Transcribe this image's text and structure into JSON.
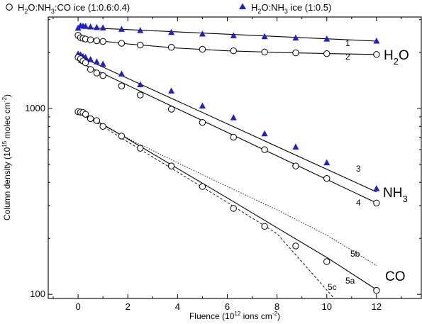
{
  "chart_data": {
    "type": "scatter",
    "y_scale": "log",
    "xlim": [
      -1.2,
      13.8
    ],
    "ylim": [
      95,
      3100
    ],
    "xlabel": {
      "main": "Fluence (10",
      "sup1": "12",
      "mid": " ions cm",
      "sup2": "-2",
      "end": ")"
    },
    "ylabel": {
      "main": "Column density (10",
      "sup1": "15",
      "mid": " molec cm",
      "sup2": "-2",
      "end": ")"
    },
    "x_ticks": [
      0,
      2,
      4,
      6,
      8,
      10,
      12
    ],
    "x_tick_labels": [
      "0",
      "2",
      "4",
      "6",
      "8",
      "10",
      "12"
    ],
    "y_tick_labels": [
      {
        "value": 100,
        "label": "100"
      },
      {
        "value": 1000,
        "label": "1000"
      }
    ],
    "legend": {
      "circles": {
        "pre": "H",
        "s1": "2",
        "mid1": "O:NH",
        "s2": "3",
        "post": ":CO ice (1:0.6:0.4)"
      },
      "triangles": {
        "pre": "H",
        "s1": "2",
        "mid1": "O:NH",
        "s2": "3",
        "post": " ice (1:0.5)"
      }
    },
    "species_labels": {
      "h2o": {
        "main": "H",
        "sub": "2",
        "post": "O"
      },
      "nh3": {
        "main": "NH",
        "sub": "3"
      },
      "co": {
        "main": "CO"
      }
    },
    "curve_labels": [
      "1",
      "2",
      "3",
      "4",
      "5a",
      "5b",
      "5c"
    ],
    "series": [
      {
        "name": "H2O (1:0.5 ice)",
        "marker": "triangle",
        "color": "#1f1fd0",
        "x": [
          0,
          0.1,
          0.2,
          0.3,
          0.5,
          0.75,
          1.0,
          1.75,
          2.5,
          3.75,
          5.0,
          6.25,
          7.5,
          8.75,
          10.0,
          12.0
        ],
        "y": [
          2700,
          2780,
          2770,
          2760,
          2740,
          2720,
          2710,
          2660,
          2620,
          2560,
          2510,
          2460,
          2430,
          2390,
          2360,
          2300
        ]
      },
      {
        "name": "H2O (1:0.6:0.4 ice)",
        "marker": "circle",
        "x": [
          0,
          0.1,
          0.2,
          0.3,
          0.5,
          0.75,
          1.0,
          1.75,
          2.5,
          3.75,
          5.0,
          6.25,
          7.5,
          8.75,
          10.0,
          12.0
        ],
        "y": [
          2470,
          2400,
          2380,
          2360,
          2340,
          2310,
          2290,
          2240,
          2190,
          2130,
          2080,
          2040,
          2010,
          1990,
          1970,
          1950
        ]
      },
      {
        "name": "NH3 (1:0.5 ice)",
        "marker": "triangle",
        "color": "#1f1fd0",
        "x": [
          0,
          0.1,
          0.2,
          0.3,
          0.5,
          0.75,
          1.0,
          1.75,
          2.5,
          3.75,
          5.0,
          6.25,
          7.5,
          8.75,
          10.0,
          12.0
        ],
        "y": [
          1960,
          1940,
          1900,
          1880,
          1830,
          1780,
          1730,
          1530,
          1340,
          1240,
          1030,
          890,
          730,
          620,
          510,
          370
        ]
      },
      {
        "name": "NH3 (1:0.6:0.4 ice)",
        "marker": "circle",
        "x": [
          0,
          0.1,
          0.2,
          0.3,
          0.5,
          0.75,
          1.0,
          1.75,
          2.5,
          3.75,
          5.0,
          6.25,
          7.5,
          8.75,
          10.0,
          12.0
        ],
        "y": [
          1880,
          1850,
          1800,
          1760,
          1620,
          1550,
          1500,
          1320,
          1180,
          990,
          840,
          700,
          600,
          490,
          420,
          310
        ]
      },
      {
        "name": "CO (1:0.6:0.4 ice)",
        "marker": "circle",
        "x": [
          0,
          0.1,
          0.2,
          0.3,
          0.5,
          0.75,
          1.0,
          1.75,
          2.5,
          3.75,
          5.0,
          6.25,
          7.5,
          8.75,
          10.0,
          12.0
        ],
        "y": [
          960,
          955,
          950,
          930,
          880,
          860,
          800,
          710,
          610,
          490,
          380,
          290,
          232,
          182,
          150,
          105
        ]
      }
    ],
    "fits": [
      {
        "label": "1",
        "style": "solid",
        "x": [
          0,
          12
        ],
        "y": [
          2730,
          2300
        ]
      },
      {
        "label": "2",
        "style": "solid",
        "x": [
          0,
          1,
          2,
          4,
          6,
          8,
          10,
          12
        ],
        "y": [
          2390,
          2300,
          2220,
          2110,
          2040,
          2000,
          1970,
          1950
        ]
      },
      {
        "label": "3",
        "style": "solid",
        "x": [
          0,
          12
        ],
        "y": [
          1920,
          355
        ]
      },
      {
        "label": "4",
        "style": "solid",
        "x": [
          0,
          12
        ],
        "y": [
          1780,
          310
        ]
      },
      {
        "label": "5a",
        "style": "solid",
        "x": [
          0,
          1,
          2,
          4,
          6,
          8,
          10,
          12
        ],
        "y": [
          950,
          820,
          685,
          475,
          330,
          228,
          158,
          106
        ]
      },
      {
        "label": "5b",
        "style": "dotted",
        "x": [
          0,
          1,
          2,
          4,
          6,
          8,
          10,
          12
        ],
        "y": [
          950,
          810,
          690,
          510,
          380,
          285,
          208,
          143
        ]
      },
      {
        "label": "5c",
        "style": "dashed",
        "x": [
          0,
          1,
          2,
          4,
          6,
          8,
          10.3
        ],
        "y": [
          950,
          800,
          660,
          455,
          312,
          212,
          95
        ]
      }
    ]
  }
}
